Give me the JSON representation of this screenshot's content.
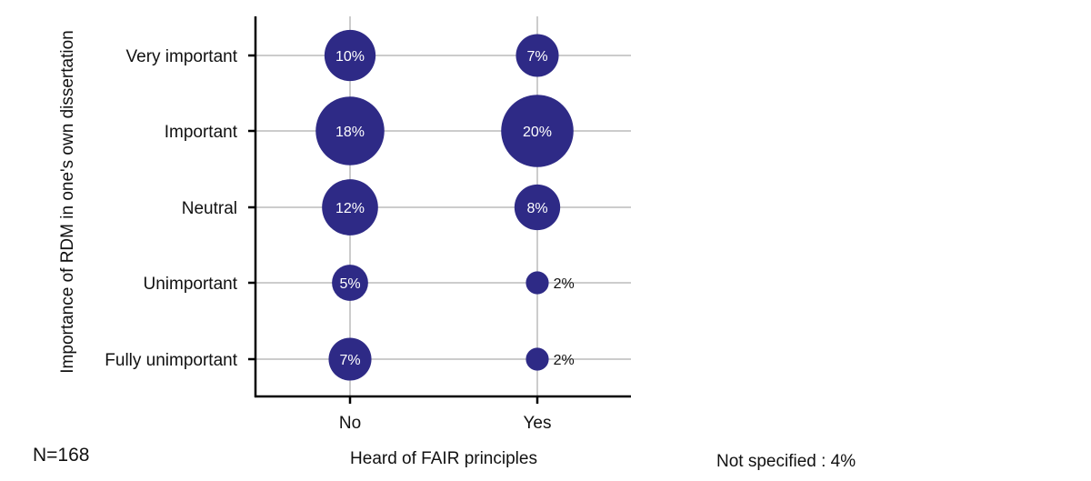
{
  "chart_data": {
    "type": "bubble",
    "xlabel": "Heard of FAIR principles",
    "ylabel": "Importance of RDM in one's own dissertation",
    "categories_x": [
      "No",
      "Yes"
    ],
    "categories_y": [
      "Very important",
      "Important",
      "Neutral",
      "Unimportant",
      "Fully unimportant"
    ],
    "points": [
      {
        "x": "No",
        "y": "Very important",
        "value": 10,
        "label": "10%"
      },
      {
        "x": "Yes",
        "y": "Very important",
        "value": 7,
        "label": "7%"
      },
      {
        "x": "No",
        "y": "Important",
        "value": 18,
        "label": "18%"
      },
      {
        "x": "Yes",
        "y": "Important",
        "value": 20,
        "label": "20%"
      },
      {
        "x": "No",
        "y": "Neutral",
        "value": 12,
        "label": "12%"
      },
      {
        "x": "Yes",
        "y": "Neutral",
        "value": 8,
        "label": "8%"
      },
      {
        "x": "No",
        "y": "Unimportant",
        "value": 5,
        "label": "5%"
      },
      {
        "x": "Yes",
        "y": "Unimportant",
        "value": 2,
        "label": "2%"
      },
      {
        "x": "No",
        "y": "Fully unimportant",
        "value": 7,
        "label": "7%"
      },
      {
        "x": "Yes",
        "y": "Fully unimportant",
        "value": 2,
        "label": "2%"
      }
    ],
    "grid": true,
    "bubble_color": "#2e2a86"
  },
  "notes": {
    "sample_size": "N=168",
    "not_specified": "Not specified : 4%"
  }
}
